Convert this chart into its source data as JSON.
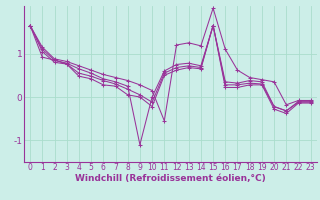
{
  "background_color": "#cceee8",
  "line_color": "#993399",
  "grid_color": "#aaddcc",
  "xlabel": "Windchill (Refroidissement éolien,°C)",
  "xlabel_fontsize": 6.5,
  "xtick_fontsize": 5.5,
  "ytick_fontsize": 6.5,
  "xlim": [
    -0.5,
    23.5
  ],
  "ylim": [
    -1.5,
    2.1
  ],
  "yticks": [
    -1,
    0,
    1
  ],
  "xticks": [
    0,
    1,
    2,
    3,
    4,
    5,
    6,
    7,
    8,
    9,
    10,
    11,
    12,
    13,
    14,
    15,
    16,
    17,
    18,
    19,
    20,
    21,
    22,
    23
  ],
  "series": [
    [
      1.65,
      1.15,
      0.88,
      0.82,
      0.72,
      0.62,
      0.52,
      0.45,
      0.38,
      0.28,
      0.15,
      -0.55,
      1.2,
      1.25,
      1.18,
      2.05,
      1.1,
      0.62,
      0.45,
      0.4,
      0.35,
      -0.18,
      -0.08,
      -0.08
    ],
    [
      1.65,
      1.1,
      0.85,
      0.78,
      0.65,
      0.55,
      0.42,
      0.35,
      0.25,
      -1.1,
      0.0,
      0.6,
      0.75,
      0.78,
      0.72,
      1.65,
      0.35,
      0.32,
      0.38,
      0.35,
      -0.22,
      -0.32,
      -0.1,
      -0.1
    ],
    [
      1.65,
      1.05,
      0.8,
      0.76,
      0.55,
      0.48,
      0.38,
      0.3,
      0.18,
      0.05,
      -0.12,
      0.55,
      0.68,
      0.72,
      0.68,
      1.65,
      0.28,
      0.28,
      0.32,
      0.3,
      -0.22,
      -0.32,
      -0.12,
      -0.12
    ],
    [
      1.65,
      0.92,
      0.85,
      0.76,
      0.48,
      0.42,
      0.28,
      0.25,
      0.05,
      0.0,
      -0.22,
      0.5,
      0.62,
      0.68,
      0.65,
      1.65,
      0.22,
      0.22,
      0.28,
      0.28,
      -0.28,
      -0.38,
      -0.14,
      -0.14
    ]
  ]
}
